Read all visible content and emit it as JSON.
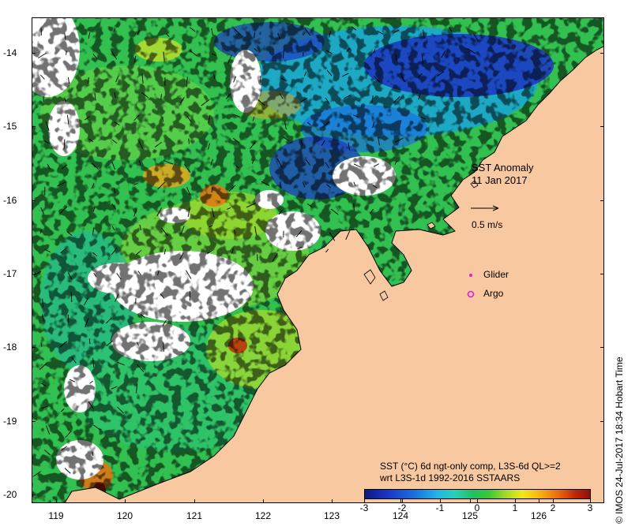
{
  "title": "SST Anomaly",
  "date": "11 Jan 2017",
  "velocity_scale": "0.5 m/s",
  "legend": {
    "glider": "Glider",
    "argo": "Argo",
    "glider_color": "#e020e0",
    "argo_color": "#e020e0"
  },
  "colorbar": {
    "title_line1": "SST (°C) 6d ngt-only comp, L3S-6d QL>=2",
    "title_line2": "wrt L3S-1d 1992-2016 SSTAARS",
    "ticks": [
      "-3",
      "-2",
      "-1",
      "0",
      "1",
      "2",
      "3"
    ],
    "min": -3,
    "max": 3
  },
  "y_axis": {
    "ticks": [
      "-14",
      "-15",
      "-16",
      "-17",
      "-18",
      "-19",
      "-20"
    ]
  },
  "x_axis": {
    "ticks": [
      "119",
      "120",
      "121",
      "122",
      "123",
      "124",
      "125",
      "126"
    ]
  },
  "credit": "© IMOS 24-Jul-2017 18:34 Hobart Time",
  "colors": {
    "land": "#f8c8a0",
    "ocean_blank": "#ffffff"
  }
}
